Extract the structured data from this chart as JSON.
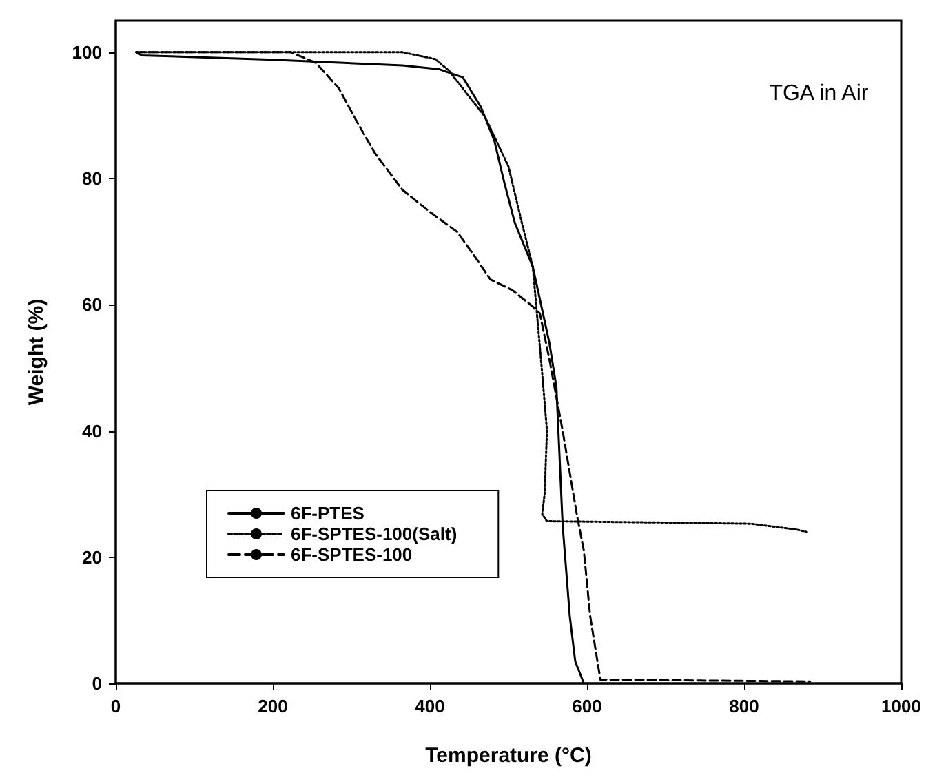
{
  "chart_data": {
    "type": "line",
    "xlabel": "Temperature (°C)",
    "ylabel": "Weight (%)",
    "annotations": [
      "TGA in Air"
    ],
    "xlim": [
      0,
      1000
    ],
    "ylim": [
      0,
      105
    ],
    "xticks": [
      0,
      200,
      400,
      600,
      800,
      1000
    ],
    "yticks": [
      0,
      20,
      40,
      60,
      80,
      100
    ],
    "grid": false,
    "legend": "bottom left",
    "marker": "none",
    "series": [
      {
        "name": "6F-PTES",
        "color": "#000000",
        "line_style": "solid",
        "x": [
          26,
          33,
          200,
          365,
          412,
          442,
          465,
          482,
          494,
          508,
          531,
          552,
          561,
          569,
          578,
          585,
          596
        ],
        "values": [
          100,
          99.5,
          98.8,
          97.9,
          97.3,
          96,
          91.3,
          86,
          79.7,
          73,
          66,
          54,
          47,
          25,
          10.7,
          3.5,
          0
        ]
      },
      {
        "name": "6F-SPTES-100(Salt)",
        "color": "#000000",
        "line_style": "dotted",
        "x": [
          26,
          365,
          407,
          424,
          470,
          500,
          517,
          531,
          543,
          549,
          546,
          543,
          549,
          692,
          809,
          866,
          880
        ],
        "values": [
          100,
          100,
          98.9,
          97.1,
          89.8,
          81.9,
          73,
          66,
          49,
          40,
          30,
          26.8,
          25.7,
          25.5,
          25.3,
          24.4,
          24
        ]
      },
      {
        "name": "6F-SPTES-100",
        "color": "#000000",
        "line_style": "dashed",
        "x": [
          26,
          223,
          255,
          284,
          307,
          330,
          365,
          400,
          435,
          459,
          477,
          505,
          531,
          540,
          552,
          569,
          587,
          596,
          604,
          617,
          884
        ],
        "values": [
          100,
          100,
          98.3,
          94.3,
          89,
          84,
          78.2,
          74.7,
          71.5,
          67.3,
          64,
          62.3,
          59.7,
          58.6,
          51.4,
          40,
          26.8,
          21,
          10.7,
          0.6,
          0.3
        ]
      }
    ]
  }
}
